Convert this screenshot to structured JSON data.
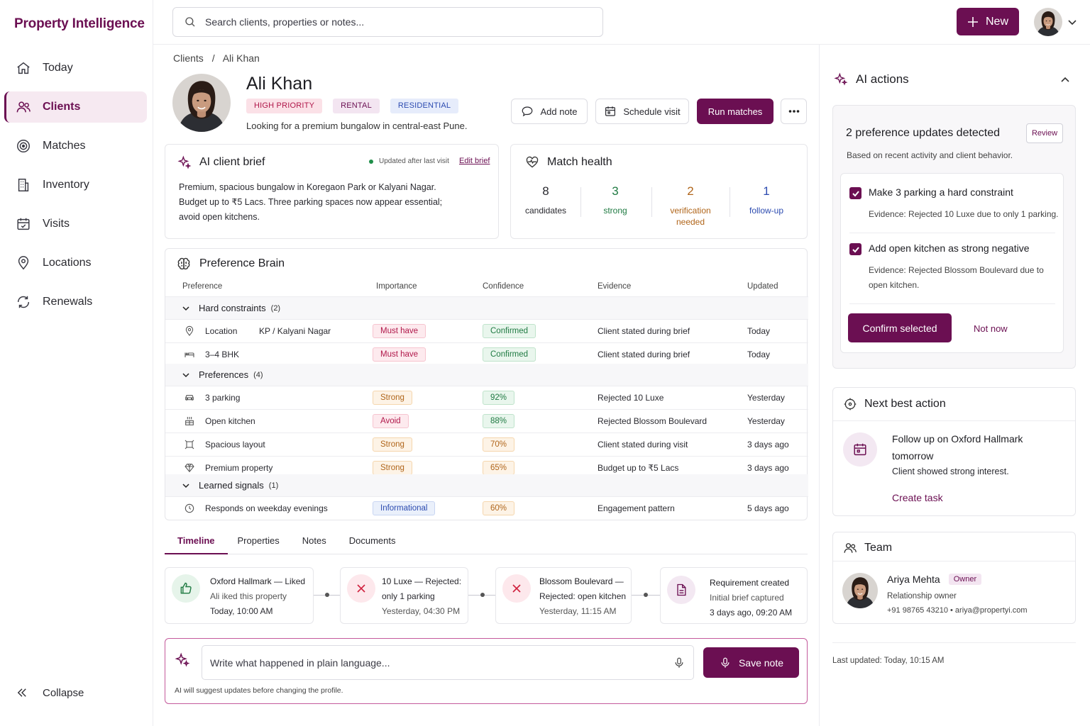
{
  "brand": "Property Intelligence",
  "nav": {
    "items": [
      {
        "label": "Today",
        "icon": "home-icon"
      },
      {
        "label": "Clients",
        "icon": "users-icon",
        "active": true
      },
      {
        "label": "Matches",
        "icon": "target-icon"
      },
      {
        "label": "Inventory",
        "icon": "building-icon"
      },
      {
        "label": "Visits",
        "icon": "calendar-icon"
      },
      {
        "label": "Locations",
        "icon": "pin-icon"
      },
      {
        "label": "Renewals",
        "icon": "refresh-icon"
      }
    ],
    "collapse": "Collapse"
  },
  "topbar": {
    "search_placeholder": "Search clients, properties or notes...",
    "new_label": "New"
  },
  "breadcrumb": [
    "Clients",
    "/",
    "Ali Khan"
  ],
  "client": {
    "name": "Ali Khan",
    "tags": [
      "HIGH PRIORITY",
      "RENTAL",
      "RESIDENTIAL"
    ],
    "summary": "Looking for a premium bungalow in central-east Pune.",
    "actions": {
      "add_note": "Add note",
      "schedule_visit": "Schedule visit",
      "run_matches": "Run matches"
    }
  },
  "brief": {
    "title": "AI client brief",
    "status": "Updated after last visit",
    "edit": "Edit brief",
    "text": "Premium, spacious bungalow in Koregaon Park or Kalyani Nagar. Budget up to ₹5 Lacs. Three parking spaces now appear essential; avoid open kitchens."
  },
  "match_health": {
    "title": "Match health",
    "stats": [
      {
        "num": "8",
        "label": "candidates",
        "color": "#2a2a30"
      },
      {
        "num": "3",
        "label": "strong",
        "color": "#1f7a42"
      },
      {
        "num": "2",
        "label": "verification needed",
        "color": "#b0651a"
      },
      {
        "num": "1",
        "label": "follow-up",
        "color": "#2c4bb0"
      }
    ]
  },
  "preference_brain": {
    "title": "Preference Brain",
    "columns": [
      "Preference",
      "Importance",
      "Confidence",
      "Evidence",
      "Updated"
    ],
    "groups": [
      {
        "label": "Hard constraints",
        "count": "(2)"
      },
      {
        "label": "Preferences",
        "count": "(4)"
      },
      {
        "label": "Learned signals",
        "count": "(1)"
      }
    ],
    "rows": [
      {
        "icon": "pin-icon",
        "name": "Location",
        "value": "KP / Kalyani Nagar",
        "importance": "Must have",
        "imp_class": "must",
        "confidence": "Confirmed",
        "conf_class": "conf",
        "evidence": "Client stated during brief",
        "updated": "Today"
      },
      {
        "icon": "bed-icon",
        "name": "3–4 BHK",
        "value": "",
        "importance": "Must have",
        "imp_class": "must",
        "confidence": "Confirmed",
        "conf_class": "conf",
        "evidence": "Client stated during brief",
        "updated": "Today"
      },
      {
        "icon": "car-icon",
        "name": "3 parking",
        "value": "",
        "importance": "Strong",
        "imp_class": "strong",
        "confidence": "92%",
        "conf_class": "pct",
        "evidence": "Rejected 10 Luxe",
        "updated": "Yesterday"
      },
      {
        "icon": "kitchen-icon",
        "name": "Open kitchen",
        "value": "",
        "importance": "Avoid",
        "imp_class": "avoid",
        "confidence": "88%",
        "conf_class": "pct",
        "evidence": "Rejected Blossom Boulevard",
        "updated": "Yesterday"
      },
      {
        "icon": "expand-icon",
        "name": "Spacious layout",
        "value": "",
        "importance": "Strong",
        "imp_class": "strong",
        "confidence": "70%",
        "conf_class": "pctw",
        "evidence": "Client stated during visit",
        "updated": "3 days ago"
      },
      {
        "icon": "diamond-icon",
        "name": "Premium property",
        "value": "",
        "importance": "Strong",
        "imp_class": "strong",
        "confidence": "65%",
        "conf_class": "pctw",
        "evidence": "Budget up to ₹5 Lacs",
        "updated": "3 days ago"
      },
      {
        "icon": "clock-icon",
        "name": "Responds on weekday evenings",
        "value": "",
        "importance": "Informational",
        "imp_class": "info",
        "confidence": "60%",
        "conf_class": "pctw",
        "evidence": "Engagement pattern",
        "updated": "5 days ago"
      }
    ]
  },
  "tabs": [
    "Timeline",
    "Properties",
    "Notes",
    "Documents"
  ],
  "timeline": [
    {
      "l1a": "Oxford Hallmark",
      "l1b": " — Liked",
      "l2": "Ali iked this property",
      "l3": "Today, 10:00 AM"
    },
    {
      "l1a": "10 Luxe",
      "l1b": " — Rejected:",
      "l2": "only 1 parking",
      "l3": "Yesterday, 04:30 PM"
    },
    {
      "l1a": "Blossom Boulevard",
      "l1b": " —",
      "l2": "Rejected: open kitchen",
      "l3": "Yesterday, 11:15 AM"
    },
    {
      "l1a": "Requirement created",
      "l1b": "",
      "l2": "Initial brief captured",
      "l3": "3 days ago, 09:20 AM"
    }
  ],
  "note": {
    "placeholder": "Write what happened in plain language...",
    "save": "Save note",
    "hint": "AI will suggest updates before changing the profile."
  },
  "ai_actions": {
    "title": "AI actions",
    "updates_title": "2 preference updates detected",
    "review": "Review",
    "subtitle": "Based on recent activity and client behavior.",
    "items": [
      {
        "title": "Make 3 parking a hard constraint",
        "evidence": "Evidence: Rejected 10 Luxe due to only 1 parking."
      },
      {
        "title": "Add open kitchen as strong negative",
        "evidence": "Evidence: Rejected Blossom Boulevard due to open kitchen."
      }
    ],
    "confirm": "Confirm selected",
    "not_now": "Not now"
  },
  "next_action": {
    "title": "Next best action",
    "text": "Follow up on Oxford Hallmark tomorrow",
    "sub": "Client showed strong interest.",
    "link": "Create task"
  },
  "team": {
    "title": "Team",
    "name": "Ariya Mehta",
    "badge": "Owner",
    "role": "Relationship owner",
    "contact": "+91 98765 43210 • ariya@propertyi.com"
  },
  "last_updated": "Last updated: Today, 10:15 AM"
}
